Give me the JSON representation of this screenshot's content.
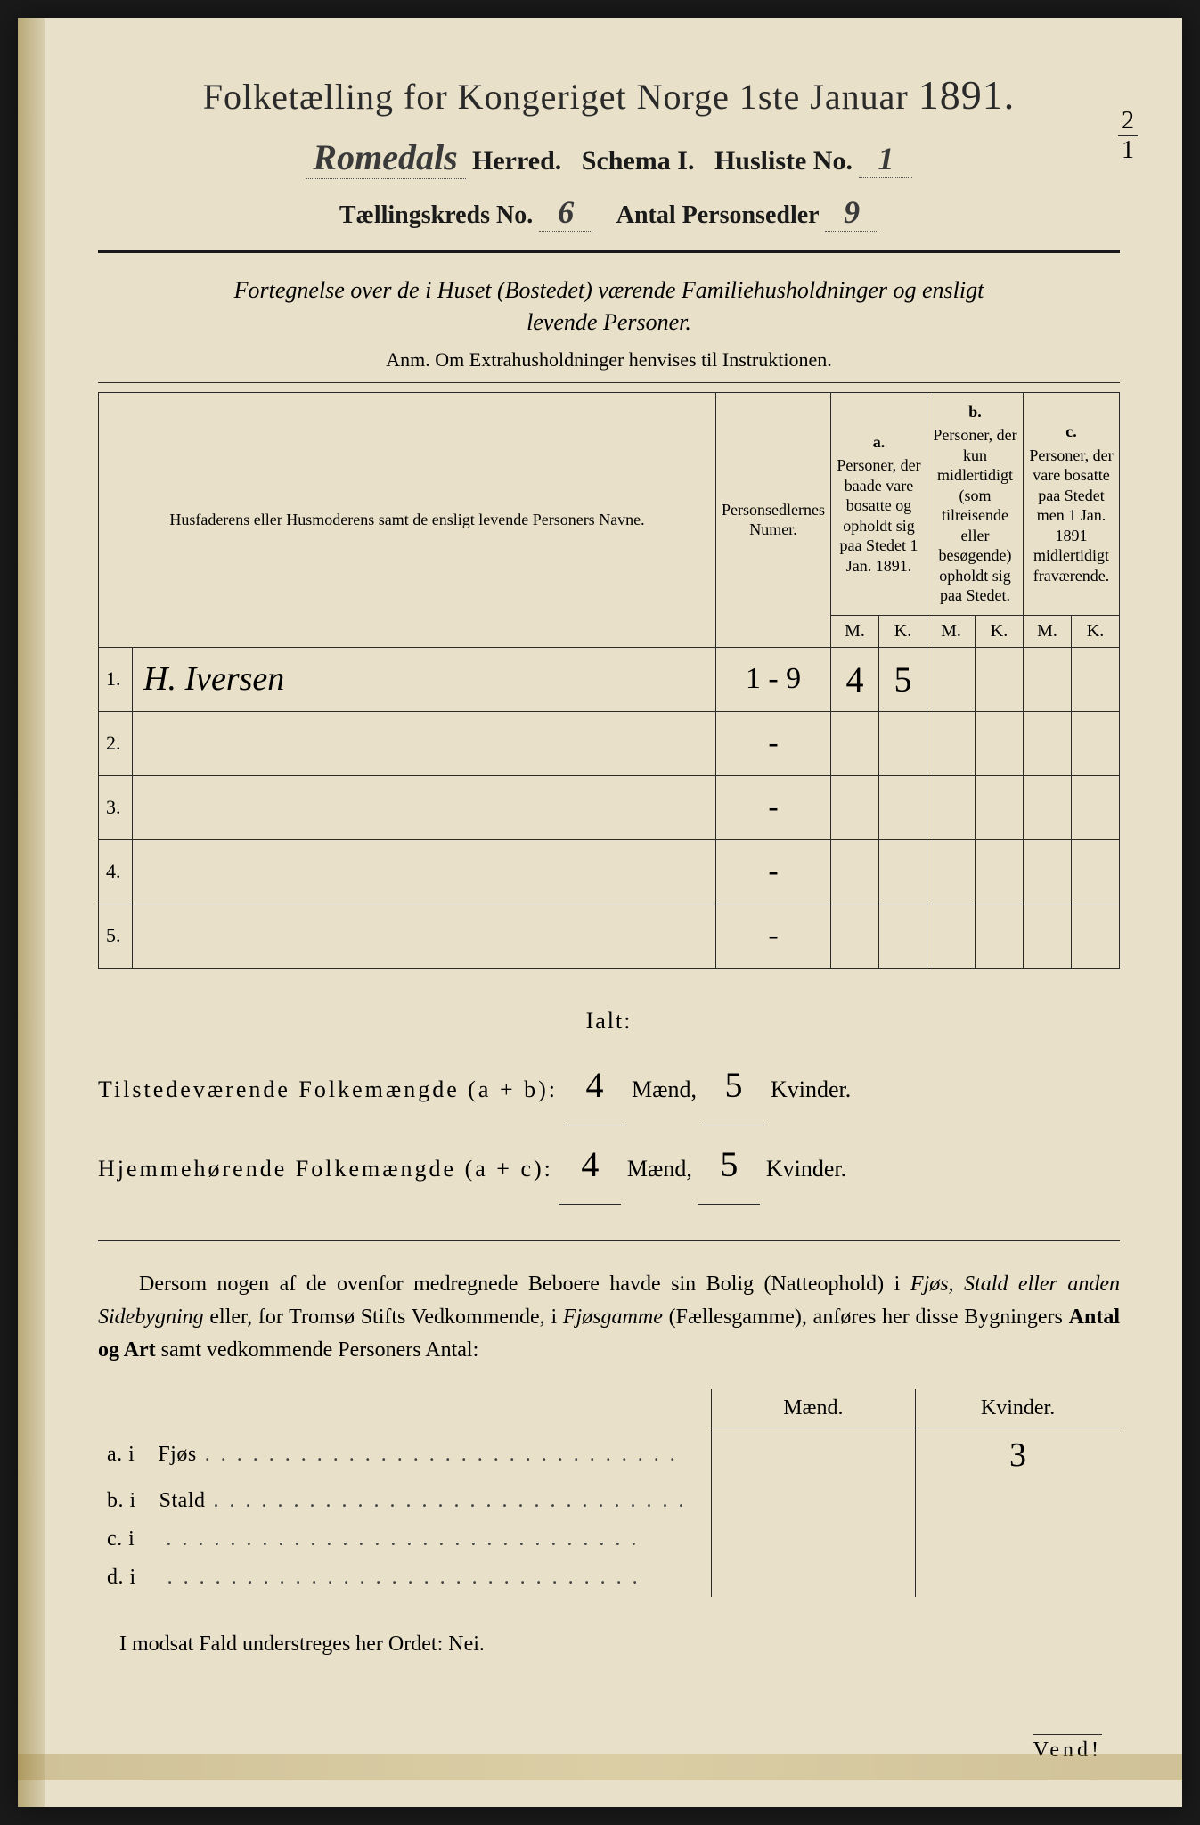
{
  "colors": {
    "paper": "#e8e0c8",
    "ink": "#1a1a1a",
    "handwriting": "#3a3a3a",
    "edge_shadow": "#b8a878"
  },
  "header": {
    "title_prefix": "Folketælling for Kongeriget Norge 1ste Januar ",
    "year": "1891.",
    "herred_value": "Romedals",
    "herred_label": "Herred.",
    "schema_label": "Schema I.",
    "husliste_label": "Husliste No.",
    "husliste_value": "1",
    "kreds_label": "Tællingskreds No.",
    "kreds_value": "6",
    "personsedler_label": "Antal Personsedler",
    "personsedler_value": "9",
    "fraction_num": "2",
    "fraction_den": "1"
  },
  "description": {
    "line1": "Fortegnelse over de i Huset (Bostedet) værende Familiehusholdninger og ensligt",
    "line2": "levende Personer.",
    "anm": "Anm.  Om Extrahusholdninger henvises til Instruktionen."
  },
  "table": {
    "col_names": "Husfaderens eller Husmoderens samt de ensligt levende Personers Navne.",
    "col_numer": "Personsedlernes Numer.",
    "col_a_letter": "a.",
    "col_a": "Personer, der baade vare bosatte og opholdt sig paa Stedet 1 Jan. 1891.",
    "col_b_letter": "b.",
    "col_b": "Personer, der kun midlertidigt (som tilreisende eller besøgende) opholdt sig paa Stedet.",
    "col_c_letter": "c.",
    "col_c": "Personer, der vare bosatte paa Stedet men 1 Jan. 1891 midlertidigt fraværende.",
    "M": "M.",
    "K": "K.",
    "rows": [
      {
        "n": "1.",
        "name": "H. Iversen",
        "numer": "1 - 9",
        "aM": "4",
        "aK": "5",
        "bM": "",
        "bK": "",
        "cM": "",
        "cK": ""
      },
      {
        "n": "2.",
        "name": "",
        "numer": "-",
        "aM": "",
        "aK": "",
        "bM": "",
        "bK": "",
        "cM": "",
        "cK": ""
      },
      {
        "n": "3.",
        "name": "",
        "numer": "-",
        "aM": "",
        "aK": "",
        "bM": "",
        "bK": "",
        "cM": "",
        "cK": ""
      },
      {
        "n": "4.",
        "name": "",
        "numer": "-",
        "aM": "",
        "aK": "",
        "bM": "",
        "bK": "",
        "cM": "",
        "cK": ""
      },
      {
        "n": "5.",
        "name": "",
        "numer": "-",
        "aM": "",
        "aK": "",
        "bM": "",
        "bK": "",
        "cM": "",
        "cK": ""
      }
    ]
  },
  "totals": {
    "ialt": "Ialt:",
    "line1_label": "Tilstedeværende Folkemængde (a + b):",
    "line2_label": "Hjemmehørende Folkemængde (a + c):",
    "maend": "Mænd,",
    "kvinder": "Kvinder.",
    "l1_m": "4",
    "l1_k": "5",
    "l2_m": "4",
    "l2_k": "5"
  },
  "para": {
    "text1": "Dersom nogen af de ovenfor medregnede Beboere havde sin Bolig (Natteophold) i ",
    "ital1": "Fjøs, Stald eller anden Sidebygning",
    "text2": " eller, for Tromsø Stifts Vedkommende, i ",
    "ital2": "Fjøsgamme",
    "text3": " (Fællesgamme), anføres her disse Bygningers ",
    "bold1": "Antal og Art",
    "text4": " samt vedkommende Personers Antal:"
  },
  "outbuildings": {
    "maend": "Mænd.",
    "kvinder": "Kvinder.",
    "rows": [
      {
        "key": "a.  i",
        "label": "Fjøs",
        "m": "",
        "k": "3"
      },
      {
        "key": "b.  i",
        "label": "Stald",
        "m": "",
        "k": ""
      },
      {
        "key": "c.  i",
        "label": "",
        "m": "",
        "k": ""
      },
      {
        "key": "d.  i",
        "label": "",
        "m": "",
        "k": ""
      }
    ]
  },
  "footer": {
    "text": "I modsat Fald understreges her Ordet: Nei.",
    "vend": "Vend!"
  }
}
